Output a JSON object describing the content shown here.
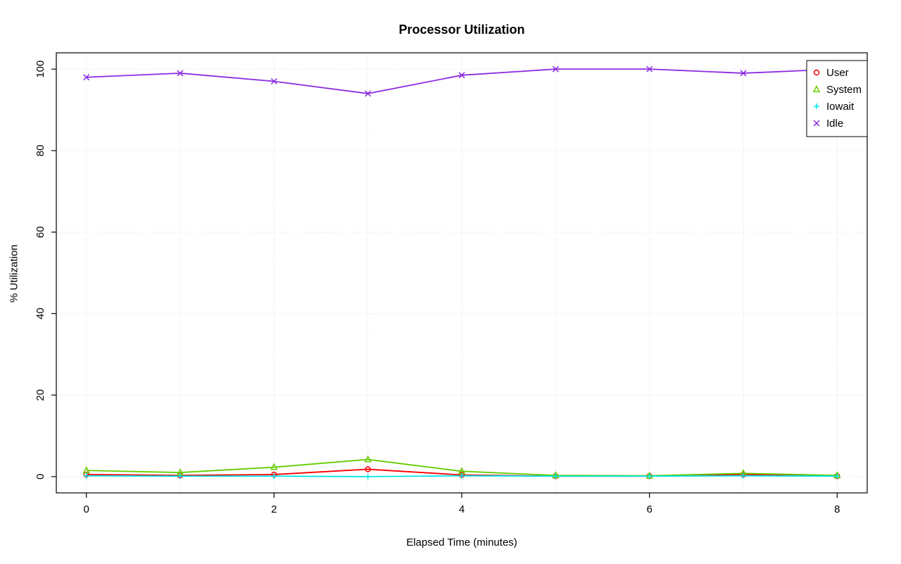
{
  "chart_data": {
    "type": "line",
    "title": "Processor Utilization",
    "xlabel": "Elapsed Time (minutes)",
    "ylabel": "% Utilization",
    "x": [
      0,
      1,
      2,
      3,
      4,
      5,
      6,
      7,
      8
    ],
    "xlim": [
      0,
      8
    ],
    "ylim": [
      0,
      100
    ],
    "xticks": [
      0,
      2,
      4,
      6,
      8
    ],
    "yticks": [
      0,
      20,
      40,
      60,
      80,
      100
    ],
    "grid": {
      "x_every": 1,
      "y_every": 20,
      "color": "#d6d6d6",
      "style": "dotted"
    },
    "legend_position": "top-right",
    "series": [
      {
        "name": "User",
        "color": "#ff0000",
        "marker": "circle",
        "values": [
          0.5,
          0.3,
          0.5,
          1.8,
          0.4,
          0.1,
          0.1,
          0.5,
          0.1
        ]
      },
      {
        "name": "System",
        "color": "#66cd00",
        "marker": "triangle",
        "values": [
          1.5,
          1.0,
          2.3,
          4.2,
          1.3,
          0.3,
          0.2,
          0.8,
          0.3
        ]
      },
      {
        "name": "Iowait",
        "color": "#00e5ee",
        "marker": "plus",
        "values": [
          0.2,
          0.1,
          0.1,
          0.0,
          0.2,
          0.1,
          0.1,
          0.2,
          0.1
        ]
      },
      {
        "name": "Idle",
        "color": "#8a2be2",
        "marker": "x",
        "values": [
          98,
          99,
          97,
          94,
          98.5,
          100,
          100,
          99,
          100
        ]
      }
    ]
  },
  "frame": {
    "axis_color": "#000000",
    "background": "#ffffff"
  }
}
